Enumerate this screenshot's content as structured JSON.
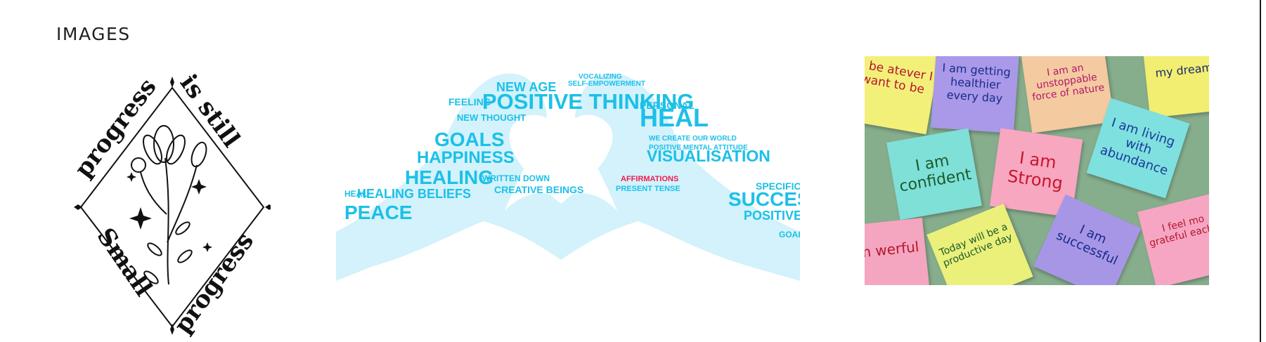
{
  "header": {
    "title": "IMAGES"
  },
  "gallery": {
    "image1": {
      "top_left": "progress",
      "top_right": "is still",
      "bottom_left": "Small",
      "bottom_right": "progress"
    },
    "image2": {
      "title_word": "AFFIRMATIONS",
      "accent_color": "#f0194f",
      "word_color": "#1cc0e8",
      "words": {
        "w1": "POSITIVE THINKING",
        "w2": "NEW AGE",
        "w3": "FEELING",
        "w4": "GOALS",
        "w5": "HAPPINESS",
        "w6": "HEALING",
        "w7": "HEALING BELIEFS",
        "w8": "PEACE",
        "w9": "HEAL",
        "w10": "VISUALISATION",
        "w11": "SUCCESS",
        "w12": "POSITIVE",
        "w13": "NEW THOUGHT",
        "w14": "CREATIVE BEINGS",
        "w15": "WRITTEN DOWN",
        "w16": "SPECIFIC",
        "w17": "PERSONAL",
        "w18": "WE CREATE OUR WORLD",
        "w19": "POSITIVE MENTAL ATTITUDE",
        "w20": "PRESENT TENSE",
        "w21": "GOALS",
        "w22": "SELF-EMPOWERMENT",
        "w23": "HEAL",
        "w24": "VOCALIZING"
      }
    },
    "image3": {
      "notes": {
        "n1": "I am getting healthier every day",
        "n2": "I am an unstoppable force of nature",
        "n3": "my dreams",
        "n4": "n be atever I want to be",
        "n5": "I am confident",
        "n6": "I am Strong",
        "n7": "I am living with abundance",
        "n8": "am werful",
        "n9": "Today will be a productive day",
        "n10": "I am successful",
        "n11": "I feel mo grateful each d"
      }
    }
  }
}
